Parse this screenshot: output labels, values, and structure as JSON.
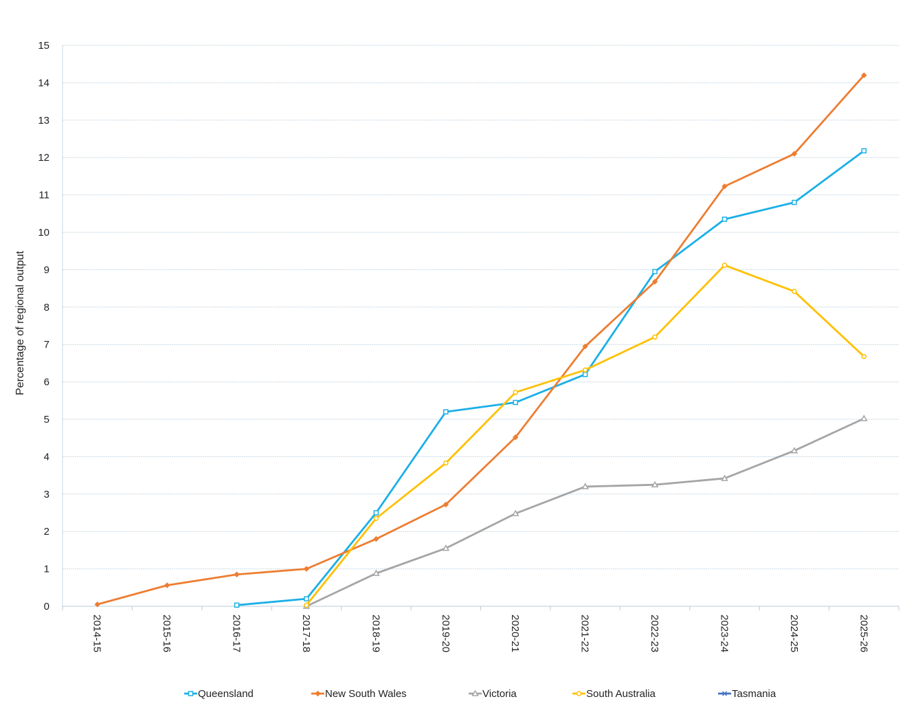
{
  "chart_data": {
    "type": "line",
    "title": "",
    "xlabel": "",
    "ylabel": "Percentage of regional output",
    "ylim": [
      0,
      15
    ],
    "yticks": [
      0,
      1,
      2,
      3,
      4,
      5,
      6,
      7,
      8,
      9,
      10,
      11,
      12,
      13,
      14,
      15
    ],
    "grid": "horizontal",
    "legend_position": "bottom",
    "categories": [
      "2014-15",
      "2015-16",
      "2016-17",
      "2017-18",
      "2018-19",
      "2019-20",
      "2020-21",
      "2021-22",
      "2022-23",
      "2023-24",
      "2024-25",
      "2025-26"
    ],
    "series": [
      {
        "name": "Queensland",
        "color": "#1aafe6",
        "marker": "square",
        "values": [
          null,
          null,
          0.03,
          0.2,
          2.5,
          5.2,
          5.45,
          6.2,
          8.95,
          10.35,
          10.8,
          12.18
        ]
      },
      {
        "name": "New South Wales",
        "color": "#ed7d31",
        "marker": "diamond",
        "values": [
          0.05,
          0.56,
          0.85,
          1.0,
          1.8,
          2.72,
          4.52,
          6.95,
          8.68,
          11.23,
          12.1,
          14.2
        ]
      },
      {
        "name": "Victoria",
        "color": "#a5a5a5",
        "marker": "triangle",
        "values": [
          null,
          null,
          null,
          0.0,
          0.88,
          1.55,
          2.48,
          3.2,
          3.25,
          3.42,
          4.16,
          5.02
        ]
      },
      {
        "name": "South Australia",
        "color": "#ffc000",
        "marker": "circle",
        "values": [
          null,
          null,
          null,
          0.03,
          2.35,
          3.83,
          5.72,
          6.32,
          7.2,
          9.12,
          8.42,
          6.68
        ]
      },
      {
        "name": "Tasmania",
        "color": "#4472c4",
        "marker": "x",
        "values": [
          null,
          null,
          null,
          null,
          null,
          null,
          null,
          null,
          null,
          null,
          null,
          null
        ]
      }
    ]
  }
}
